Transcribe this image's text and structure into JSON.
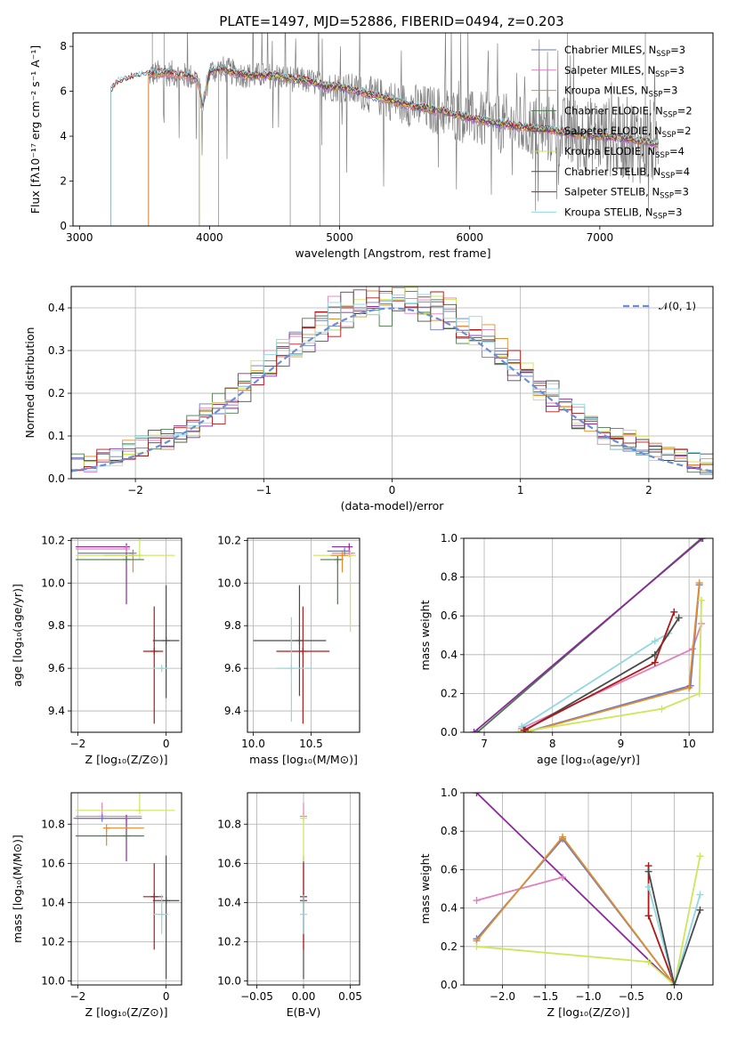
{
  "title": "PLATE=1497, MJD=52886, FIBERID=0494, z=0.203",
  "colors": {
    "chabrier_miles": "#6a78cc",
    "salpeter_miles": "#e27fbd",
    "kroupa_miles": "#e08d2c",
    "chabrier_elodie": "#4a7a4a",
    "salpeter_elodie": "#8a2a9a",
    "kroupa_elodie": "#cde65a",
    "chabrier_stelib": "#4a4a4a",
    "salpeter_stelib": "#b01818",
    "kroupa_stelib": "#8fd8e0",
    "data": "#808080",
    "normal": "#6a8fd8"
  },
  "chart_data": [
    {
      "id": "spectrum",
      "type": "line",
      "xlabel": "wavelength [Angstrom, rest frame]",
      "ylabel": "Flux [fλ10⁻¹⁷ erg cm⁻² s⁻¹ A⁻¹]",
      "xlim": [
        2950,
        7870
      ],
      "ylim": [
        0,
        8.6
      ],
      "xticks": [
        3000,
        4000,
        5000,
        6000,
        7000
      ],
      "yticks": [
        0,
        2,
        4,
        6,
        8
      ],
      "legend_position": "top-right",
      "legend": [
        {
          "label": "Chabrier MILES, N",
          "sub": "SSP",
          "suffix": "=3",
          "color_key": "chabrier_miles"
        },
        {
          "label": "Salpeter MILES, N",
          "sub": "SSP",
          "suffix": "=3",
          "color_key": "salpeter_miles"
        },
        {
          "label": "Kroupa MILES, N",
          "sub": "SSP",
          "suffix": "=3",
          "color_key": "kroupa_miles"
        },
        {
          "label": "Chabrier ELODIE, N",
          "sub": "SSP",
          "suffix": "=2",
          "color_key": "chabrier_elodie"
        },
        {
          "label": "Salpeter ELODIE, N",
          "sub": "SSP",
          "suffix": "=2",
          "color_key": "salpeter_elodie"
        },
        {
          "label": "Kroupa ELODIE, N",
          "sub": "SSP",
          "suffix": "=4",
          "color_key": "kroupa_elodie"
        },
        {
          "label": "Chabrier STELIB, N",
          "sub": "SSP",
          "suffix": "=4",
          "color_key": "chabrier_stelib"
        },
        {
          "label": "Salpeter STELIB, N",
          "sub": "SSP",
          "suffix": "=3",
          "color_key": "salpeter_stelib"
        },
        {
          "label": "Kroupa STELIB, N",
          "sub": "SSP",
          "suffix": "=3",
          "color_key": "kroupa_stelib"
        }
      ],
      "continuum": {
        "x": [
          3240,
          3300,
          3400,
          3500,
          3600,
          3700,
          3800,
          3900,
          3950,
          4000,
          4100,
          4200,
          4300,
          4400,
          4500,
          4600,
          4700,
          4800,
          4900,
          5000,
          5200,
          5400,
          5600,
          5800,
          6000,
          6200,
          6400,
          6600,
          6800,
          7000,
          7200,
          7400,
          7500
        ],
        "y": [
          6.0,
          6.4,
          6.6,
          6.7,
          6.8,
          6.8,
          6.7,
          6.6,
          5.4,
          6.9,
          7.0,
          6.8,
          6.7,
          6.7,
          6.7,
          6.6,
          6.5,
          6.4,
          6.2,
          6.2,
          5.9,
          5.6,
          5.3,
          5.1,
          4.8,
          4.6,
          4.4,
          4.3,
          4.1,
          4.0,
          3.9,
          3.7,
          3.6
        ]
      },
      "model_starts": [
        {
          "color_key": "chabrier_miles",
          "x": 3530
        },
        {
          "color_key": "salpeter_miles",
          "x": 3530
        },
        {
          "color_key": "kroupa_miles",
          "x": 3530
        },
        {
          "color_key": "chabrier_elodie",
          "x": 3920
        },
        {
          "color_key": "salpeter_elodie",
          "x": 3920
        },
        {
          "color_key": "kroupa_elodie",
          "x": 3920
        },
        {
          "color_key": "chabrier_stelib",
          "x": 3240
        },
        {
          "color_key": "salpeter_stelib",
          "x": 3240
        },
        {
          "color_key": "kroupa_stelib",
          "x": 3240
        }
      ],
      "data_range": [
        3530,
        7450
      ]
    },
    {
      "id": "residuals",
      "type": "line",
      "xlabel": "(data-model)/error",
      "ylabel": "Normed distribution",
      "xlim": [
        -2.5,
        2.5
      ],
      "ylim": [
        0,
        0.45
      ],
      "xticks": [
        -2,
        -1,
        0,
        1,
        2
      ],
      "yticks": [
        0.0,
        0.1,
        0.2,
        0.3,
        0.4
      ],
      "legend_position": "top-right",
      "legend": [
        {
          "label": "𝒩(0, 1)",
          "color_key": "normal"
        }
      ],
      "bin_width": 0.1
    },
    {
      "id": "age_vs_z",
      "type": "scatter",
      "xlabel": "Z [log₁₀(Z/Z⊙)]",
      "ylabel": "age  [log₁₀(age/yr)]",
      "xlim": [
        -2.15,
        0.35
      ],
      "ylim": [
        9.3,
        10.21
      ],
      "xticks": [
        -2,
        0
      ],
      "yticks": [
        9.4,
        9.6,
        9.8,
        10.0,
        10.2
      ],
      "points": [
        {
          "color_key": "salpeter_elodie",
          "x": -0.9,
          "y": 10.17,
          "xerr": [
            1.15,
            0
          ],
          "yerr": [
            0.27,
            0
          ]
        },
        {
          "color_key": "salpeter_miles",
          "x": -0.9,
          "y": 10.16,
          "xerr": [
            1.15,
            0
          ],
          "yerr": [
            0,
            0
          ]
        },
        {
          "color_key": "chabrier_miles",
          "x": -0.75,
          "y": 10.14,
          "xerr": [
            1.25,
            0
          ],
          "yerr": [
            0,
            0
          ]
        },
        {
          "color_key": "kroupa_miles",
          "x": -0.75,
          "y": 10.13,
          "xerr": [
            0.65,
            0
          ],
          "yerr": [
            0.08,
            0
          ]
        },
        {
          "color_key": "kroupa_elodie",
          "x": -0.6,
          "y": 10.13,
          "xerr": [
            1.45,
            0.8
          ],
          "yerr": [
            0,
            0.6
          ]
        },
        {
          "color_key": "chabrier_elodie",
          "x": -0.9,
          "y": 10.11,
          "xerr": [
            1.15,
            0.4
          ],
          "yerr": [
            0,
            0
          ]
        },
        {
          "color_key": "chabrier_stelib",
          "x": 0.0,
          "y": 9.73,
          "xerr": [
            0.3,
            0.3
          ],
          "yerr": [
            0.27,
            0.26
          ]
        },
        {
          "color_key": "salpeter_stelib",
          "x": -0.27,
          "y": 9.68,
          "xerr": [
            0.25,
            0.2
          ],
          "yerr": [
            0.34,
            0.21
          ]
        },
        {
          "color_key": "kroupa_stelib",
          "x": -0.1,
          "y": 9.6,
          "xerr": [
            0.2,
            0.15
          ],
          "yerr": [
            0.0,
            0.0
          ]
        }
      ]
    },
    {
      "id": "age_vs_mass",
      "type": "scatter",
      "xlabel": "mass [log₁₀(M/M⊙)]",
      "ylabel": "",
      "xlim": [
        9.95,
        10.92
      ],
      "ylim": [
        9.3,
        10.21
      ],
      "xticks": [
        10.0,
        10.5
      ],
      "yticks": [
        9.4,
        9.6,
        9.8,
        10.0,
        10.2
      ],
      "points": [
        {
          "color_key": "salpeter_elodie",
          "x": 10.83,
          "y": 10.17,
          "xerr": [
            0.15,
            0
          ],
          "yerr": [
            0,
            0
          ]
        },
        {
          "color_key": "salpeter_miles",
          "x": 10.83,
          "y": 10.14,
          "xerr": [
            0.15,
            0.05
          ],
          "yerr": [
            0,
            0
          ]
        },
        {
          "color_key": "chabrier_miles",
          "x": 10.79,
          "y": 10.15,
          "xerr": [
            0.15,
            0.05
          ],
          "yerr": [
            0,
            0
          ]
        },
        {
          "color_key": "kroupa_elodie",
          "x": 10.84,
          "y": 10.13,
          "xerr": [
            0.32,
            0.05
          ],
          "yerr": [
            0.36,
            0.0
          ]
        },
        {
          "color_key": "chabrier_elodie",
          "x": 10.73,
          "y": 10.11,
          "xerr": [
            0.15,
            0.05
          ],
          "yerr": [
            0.21,
            0.0
          ]
        },
        {
          "color_key": "kroupa_miles",
          "x": 10.77,
          "y": 10.13,
          "xerr": [
            0.1,
            0.05
          ],
          "yerr": [
            0.08,
            0
          ]
        },
        {
          "color_key": "chabrier_stelib",
          "x": 10.4,
          "y": 9.73,
          "xerr": [
            0.4,
            0.23
          ],
          "yerr": [
            0.26,
            0.26
          ]
        },
        {
          "color_key": "salpeter_stelib",
          "x": 10.43,
          "y": 9.68,
          "xerr": [
            0.23,
            0.23
          ],
          "yerr": [
            0.34,
            0.21
          ]
        },
        {
          "color_key": "kroupa_stelib",
          "x": 10.33,
          "y": 9.6,
          "xerr": [
            0.13,
            0.17
          ],
          "yerr": [
            0.25,
            0.24
          ]
        }
      ]
    },
    {
      "id": "mass_weight_vs_age",
      "type": "line",
      "xlabel": "age  [log₁₀(age/yr)]",
      "ylabel": "mass weight",
      "xlim": [
        6.7,
        10.35
      ],
      "ylim": [
        0,
        1
      ],
      "xticks": [
        7,
        8,
        9,
        10
      ],
      "yticks": [
        0.0,
        0.2,
        0.4,
        0.6,
        0.8,
        1.0
      ],
      "series": [
        {
          "color_key": "chabrier_elodie",
          "x": [
            6.9,
            10.18
          ],
          "y": [
            0.0,
            1.0
          ]
        },
        {
          "color_key": "salpeter_elodie",
          "x": [
            6.85,
            10.2
          ],
          "y": [
            0.0,
            1.0
          ]
        },
        {
          "color_key": "salpeter_miles",
          "x": [
            7.55,
            10.05,
            10.18
          ],
          "y": [
            0.02,
            0.43,
            0.56
          ]
        },
        {
          "color_key": "chabrier_miles",
          "x": [
            7.6,
            10.02,
            10.15
          ],
          "y": [
            0.0,
            0.24,
            0.76
          ]
        },
        {
          "color_key": "kroupa_miles",
          "x": [
            7.62,
            10.0,
            10.15
          ],
          "y": [
            0.0,
            0.23,
            0.77
          ]
        },
        {
          "color_key": "kroupa_elodie",
          "x": [
            7.5,
            9.6,
            10.15,
            10.18
          ],
          "y": [
            0.0,
            0.12,
            0.2,
            0.68
          ]
        },
        {
          "color_key": "kroupa_stelib",
          "x": [
            7.55,
            9.5,
            9.7
          ],
          "y": [
            0.03,
            0.47,
            0.51
          ]
        },
        {
          "color_key": "chabrier_stelib",
          "x": [
            7.6,
            9.5,
            9.85
          ],
          "y": [
            0.01,
            0.4,
            0.59
          ]
        },
        {
          "color_key": "salpeter_stelib",
          "x": [
            7.58,
            9.5,
            9.78
          ],
          "y": [
            0.01,
            0.36,
            0.62
          ]
        }
      ]
    },
    {
      "id": "mass_vs_z",
      "type": "scatter",
      "xlabel": "Z [log₁₀(Z/Z⊙)]",
      "ylabel": "mass [log₁₀(M/M⊙)]",
      "xlim": [
        -2.15,
        0.35
      ],
      "ylim": [
        9.98,
        10.96
      ],
      "xticks": [
        -2,
        0
      ],
      "yticks": [
        10.0,
        10.2,
        10.4,
        10.6,
        10.8
      ],
      "points": [
        {
          "color_key": "salpeter_miles",
          "x": -1.45,
          "y": 10.84,
          "xerr": [
            0.6,
            0.9
          ],
          "yerr": [
            0,
            0.07
          ]
        },
        {
          "color_key": "salpeter_elodie",
          "x": -0.9,
          "y": 10.83,
          "xerr": [
            1.15,
            0
          ],
          "yerr": [
            0.22,
            0
          ]
        },
        {
          "color_key": "chabrier_miles",
          "x": -1.45,
          "y": 10.83,
          "xerr": [
            0.65,
            0.9
          ],
          "yerr": [
            0,
            0.02
          ]
        },
        {
          "color_key": "kroupa_elodie",
          "x": -0.6,
          "y": 10.87,
          "xerr": [
            1.45,
            0.8
          ],
          "yerr": [
            0,
            0.22
          ]
        },
        {
          "color_key": "kroupa_miles",
          "x": -1.35,
          "y": 10.78,
          "xerr": [
            0.0,
            0.85
          ],
          "yerr": [
            0.09,
            0
          ]
        },
        {
          "color_key": "chabrier_elodie",
          "x": -0.9,
          "y": 10.74,
          "xerr": [
            1.15,
            0.4
          ],
          "yerr": [
            0.0,
            0
          ]
        },
        {
          "color_key": "chabrier_stelib",
          "x": 0.0,
          "y": 10.41,
          "xerr": [
            0.3,
            0.3
          ],
          "yerr": [
            0.4,
            0.23
          ]
        },
        {
          "color_key": "salpeter_stelib",
          "x": -0.27,
          "y": 10.43,
          "xerr": [
            0.25,
            0.2
          ],
          "yerr": [
            0.27,
            0.17
          ]
        },
        {
          "color_key": "kroupa_stelib",
          "x": -0.1,
          "y": 10.34,
          "xerr": [
            0.2,
            0.15
          ],
          "yerr": [
            0.1,
            0.1
          ]
        }
      ]
    },
    {
      "id": "mass_vs_ebv",
      "type": "scatter",
      "xlabel": "E(B-V)",
      "ylabel": "",
      "xlim": [
        -0.06,
        0.06
      ],
      "ylim": [
        9.98,
        10.96
      ],
      "xticks": [
        -0.05,
        0.0,
        0.05
      ],
      "xtick_labels": [
        "−0.05",
        "0.00",
        "0.05"
      ],
      "yticks": [
        10.0,
        10.2,
        10.4,
        10.6,
        10.8
      ],
      "points": [
        {
          "color_key": "chabrier_stelib",
          "x": 0.0,
          "y": 10.41,
          "yerr": [
            0.4,
            0.23
          ]
        },
        {
          "color_key": "salpeter_stelib",
          "x": 0.0,
          "y": 10.43,
          "yerr": [
            0.27,
            0.17
          ]
        },
        {
          "color_key": "kroupa_stelib",
          "x": 0.0,
          "y": 10.34,
          "yerr": [
            0.1,
            0.1
          ]
        },
        {
          "color_key": "salpeter_miles",
          "x": 0.0,
          "y": 10.84,
          "yerr": [
            0,
            0.07
          ]
        },
        {
          "color_key": "kroupa_elodie",
          "x": 0.0,
          "y": 10.83,
          "yerr": [
            0.22,
            0
          ]
        }
      ]
    },
    {
      "id": "mass_weight_vs_z",
      "type": "line",
      "xlabel": "Z [log₁₀(Z/Z⊙)]",
      "ylabel": "mass weight",
      "xlim": [
        -2.45,
        0.45
      ],
      "ylim": [
        0,
        1
      ],
      "xticks": [
        -2.0,
        -1.5,
        -1.0,
        -0.5,
        0.0
      ],
      "xtick_labels": [
        "−2.0",
        "−1.5",
        "−1.0",
        "−0.5",
        "0.0"
      ],
      "yticks": [
        0.0,
        0.2,
        0.4,
        0.6,
        0.8,
        1.0
      ],
      "series": [
        {
          "color_key": "salpeter_elodie",
          "x": [
            -2.3,
            0.0
          ],
          "y": [
            1.0,
            0.0
          ]
        },
        {
          "color_key": "salpeter_miles",
          "x": [
            -2.3,
            -1.3
          ],
          "y": [
            0.44,
            0.56
          ]
        },
        {
          "color_key": "chabrier_miles",
          "x": [
            -2.3,
            -1.3,
            0.0
          ],
          "y": [
            0.24,
            0.76,
            0.0
          ]
        },
        {
          "color_key": "kroupa_miles",
          "x": [
            -2.3,
            -1.3,
            0.0
          ],
          "y": [
            0.23,
            0.77,
            0.0
          ]
        },
        {
          "color_key": "kroupa_elodie",
          "x": [
            -2.3,
            -0.3,
            0.0,
            0.3
          ],
          "y": [
            0.2,
            0.12,
            0.0,
            0.67
          ]
        },
        {
          "color_key": "salpeter_stelib",
          "x": [
            -0.3,
            -0.3,
            0.0
          ],
          "y": [
            0.62,
            0.36,
            0.0
          ]
        },
        {
          "color_key": "kroupa_stelib",
          "x": [
            -0.3,
            0.0,
            0.3
          ],
          "y": [
            0.51,
            0.0,
            0.47
          ]
        },
        {
          "color_key": "chabrier_stelib",
          "x": [
            -0.3,
            0.0,
            0.3
          ],
          "y": [
            0.59,
            0.0,
            0.39
          ]
        }
      ]
    }
  ]
}
